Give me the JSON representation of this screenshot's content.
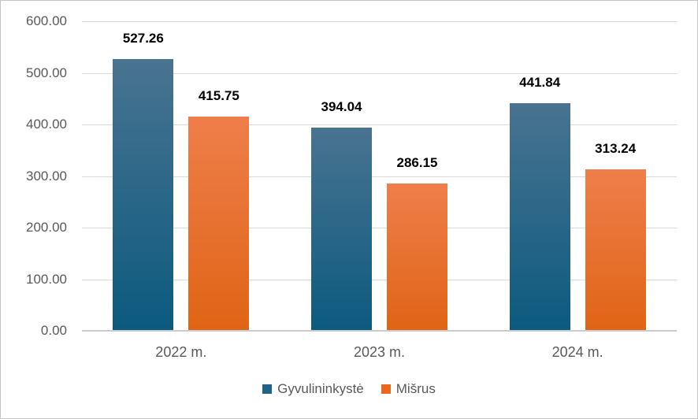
{
  "chart_data": {
    "type": "bar",
    "categories": [
      "2022 m.",
      "2023 m.",
      "2024 m."
    ],
    "series": [
      {
        "name": "Gyvulininkystė",
        "values": [
          527.26,
          394.04,
          441.84
        ],
        "value_labels": [
          "527.26",
          "394.04",
          "441.84"
        ],
        "bar_gradient_top": "#497391",
        "bar_gradient_bottom": "#0c5a7f",
        "legend_color": "#20638a"
      },
      {
        "name": "Mišrus",
        "values": [
          415.75,
          286.15,
          313.24
        ],
        "value_labels": [
          "415.75",
          "286.15",
          "313.24"
        ],
        "bar_gradient_top": "#ef7e4b",
        "bar_gradient_bottom": "#df6415",
        "legend_color": "#e9671f"
      }
    ],
    "y_ticks": [
      "0.00",
      "100.00",
      "200.00",
      "300.00",
      "400.00",
      "500.00",
      "600.00"
    ],
    "y_tick_values": [
      0,
      100,
      200,
      300,
      400,
      500,
      600
    ],
    "ylim": [
      0,
      600
    ],
    "grid": true,
    "legend_position": "bottom"
  },
  "colors": {
    "background": "#ffffff",
    "border": "#c4c4c4",
    "gridline": "#d9d9d9",
    "axis_line": "#c9ccce",
    "tick_label": "#595959",
    "category_label": "#595959",
    "data_label": "#000000",
    "legend_label": "#595959"
  }
}
